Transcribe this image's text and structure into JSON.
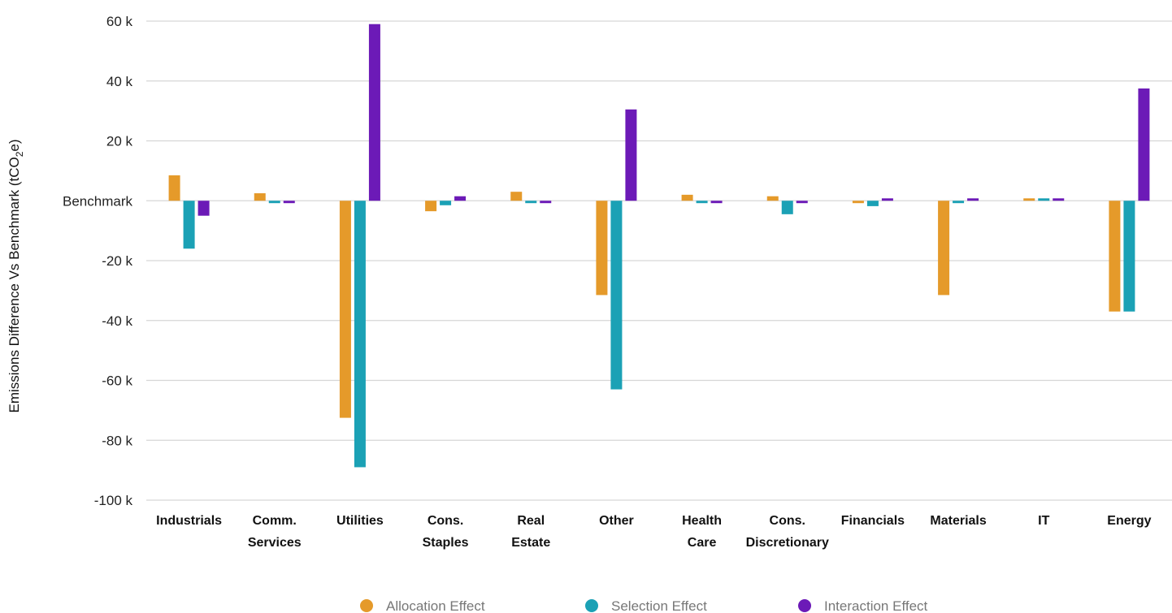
{
  "chart_data": {
    "type": "bar",
    "ylabel_main": "Emissions Difference Vs Benchmark (tCO",
    "ylabel_sub": "2",
    "ylabel_tail": "e)",
    "ylim": [
      -100000,
      60000
    ],
    "yticks": [
      {
        "value": 60000,
        "label": "60 k"
      },
      {
        "value": 40000,
        "label": "40 k"
      },
      {
        "value": 20000,
        "label": "20 k"
      },
      {
        "value": 0,
        "label": "Benchmark"
      },
      {
        "value": -20000,
        "label": "-20 k"
      },
      {
        "value": -40000,
        "label": "-40 k"
      },
      {
        "value": -60000,
        "label": "-60 k"
      },
      {
        "value": -80000,
        "label": "-80 k"
      },
      {
        "value": -100000,
        "label": "-100 k"
      }
    ],
    "categories": [
      [
        "Industrials"
      ],
      [
        "Comm.",
        "Services"
      ],
      [
        "Utilities"
      ],
      [
        "Cons.",
        "Staples"
      ],
      [
        "Real",
        "Estate"
      ],
      [
        "Other"
      ],
      [
        "Health",
        "Care"
      ],
      [
        "Cons.",
        "Discretionary"
      ],
      [
        "Financials"
      ],
      [
        "Materials"
      ],
      [
        "IT"
      ],
      [
        "Energy"
      ]
    ],
    "series": [
      {
        "name": "Allocation Effect",
        "color": "#E59A2A",
        "values": [
          8500,
          2500,
          -72500,
          -3500,
          3000,
          -31500,
          2000,
          1500,
          -800,
          -31500,
          800,
          -37000
        ]
      },
      {
        "name": "Selection Effect",
        "color": "#1BA1B5",
        "values": [
          -16000,
          -800,
          -89000,
          -1500,
          -800,
          -63000,
          -800,
          -4500,
          -1800,
          -800,
          800,
          -37000
        ]
      },
      {
        "name": "Interaction Effect",
        "color": "#6C1AB7",
        "values": [
          -5000,
          -800,
          59000,
          1500,
          -800,
          30500,
          -800,
          -800,
          800,
          800,
          800,
          37500
        ]
      }
    ],
    "grid": true,
    "legend_position": "bottom"
  }
}
